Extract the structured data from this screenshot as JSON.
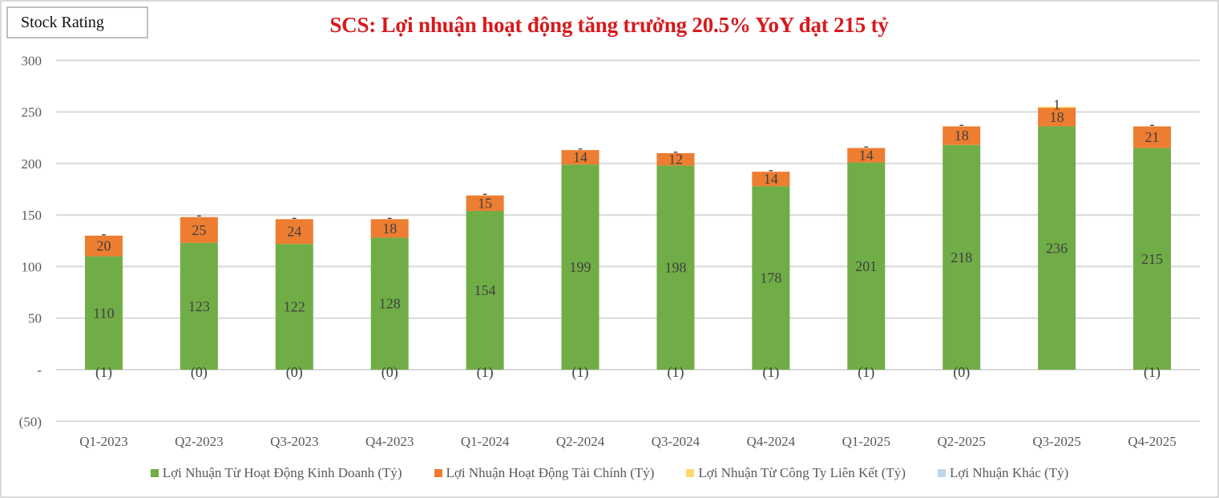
{
  "header": {
    "badge_label": "Stock Rating",
    "title": "SCS: Lợi nhuận hoạt động tăng trưởng 20.5% YoY đạt 215 tỷ"
  },
  "colors": {
    "title": "#d7191c",
    "series_operating": "#70ad47",
    "series_financial": "#ed7d31",
    "series_associates": "#ffd966",
    "series_other": "#bdd7ee",
    "gridline": "#d9d9d9"
  },
  "chart_data": {
    "type": "bar",
    "stacked": true,
    "title": "SCS: Lợi nhuận hoạt động tăng trưởng 20.5% YoY đạt 215 tỷ",
    "xlabel": "",
    "ylabel": "",
    "ylim": [
      -50,
      300
    ],
    "yticks": [
      300,
      250,
      200,
      150,
      100,
      50,
      0,
      -50
    ],
    "ytick_labels": [
      "300",
      "250",
      "200",
      "150",
      "100",
      "50",
      "-",
      "(50)"
    ],
    "grid": true,
    "legend_position": "bottom",
    "categories": [
      "Q1-2023",
      "Q2-2023",
      "Q3-2023",
      "Q4-2023",
      "Q1-2024",
      "Q2-2024",
      "Q3-2024",
      "Q4-2024",
      "Q1-2025",
      "Q2-2025",
      "Q3-2025",
      "Q4-2025"
    ],
    "series": [
      {
        "name": "Lợi Nhuận Từ Hoạt Động Kinh Doanh (Tỷ)",
        "color": "#70ad47",
        "values": [
          110,
          123,
          122,
          128,
          154,
          199,
          198,
          178,
          201,
          218,
          236,
          215
        ],
        "labels": [
          "110",
          "123",
          "122",
          "128",
          "154",
          "199",
          "198",
          "178",
          "201",
          "218",
          "236",
          "215"
        ]
      },
      {
        "name": "Lợi Nhuận Hoạt Động Tài Chính (Tỷ)",
        "color": "#ed7d31",
        "values": [
          20,
          25,
          24,
          18,
          15,
          14,
          12,
          14,
          14,
          18,
          18,
          21
        ],
        "labels": [
          "20",
          "25",
          "24",
          "18",
          "15",
          "14",
          "12",
          "14",
          "14",
          "18",
          "18",
          "21"
        ]
      },
      {
        "name": "Lợi Nhuận Từ Công Ty Liên Kết (Tỷ)",
        "color": "#ffd966",
        "values": [
          0,
          0,
          0,
          0,
          0,
          0,
          0,
          0,
          0,
          0,
          1,
          0
        ],
        "labels": [
          "-",
          "-",
          "-",
          "-",
          "-",
          "-",
          "-",
          "-",
          "-",
          "-",
          "1",
          "-"
        ]
      },
      {
        "name": "Lợi Nhuận Khác (Tỷ)",
        "color": "#bdd7ee",
        "values": [
          -1,
          0,
          0,
          0,
          -1,
          -1,
          -1,
          -1,
          -1,
          0,
          0,
          -1
        ],
        "labels": [
          "(1)",
          "(0)",
          "(0)",
          "(0)",
          "(1)",
          "(1)",
          "(1)",
          "(1)",
          "(1)",
          "(0)",
          "",
          "(1)"
        ]
      }
    ]
  }
}
